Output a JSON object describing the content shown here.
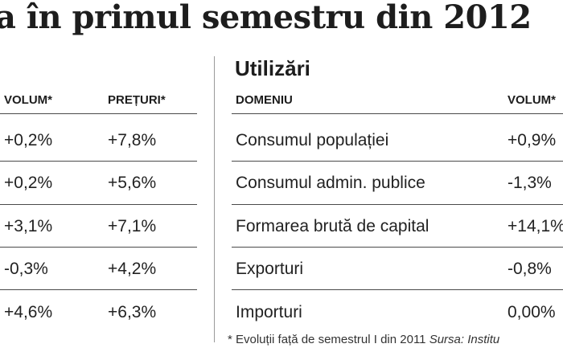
{
  "title": "a în primul semestru din 2012",
  "left_table": {
    "headers": {
      "volume": "VOLUM*",
      "prices": "PREȚURI*"
    },
    "rows": [
      {
        "volume": "+0,2%",
        "prices": "+7,8%"
      },
      {
        "volume": "+0,2%",
        "prices": "+5,6%"
      },
      {
        "volume": "+3,1%",
        "prices": "+7,1%"
      },
      {
        "volume": "-0,3%",
        "prices": "+4,2%"
      },
      {
        "volume": "+4,6%",
        "prices": "+6,3%"
      }
    ]
  },
  "right_table": {
    "title": "Utilizări",
    "headers": {
      "domain": "DOMENIU",
      "volume": "VOLUM*"
    },
    "rows": [
      {
        "domain": "Consumul populației",
        "volume": "+0,9%"
      },
      {
        "domain": "Consumul admin. publice",
        "volume": "-1,3%"
      },
      {
        "domain": "Formarea brută de capital",
        "volume": "+14,1%"
      },
      {
        "domain": "Exporturi",
        "volume": "-0,8%"
      },
      {
        "domain": "Importuri",
        "volume": "0,00%"
      }
    ]
  },
  "footnote": {
    "text": "* Evoluții față de semestrul I din 2011",
    "source": "Sursa: Institu"
  }
}
